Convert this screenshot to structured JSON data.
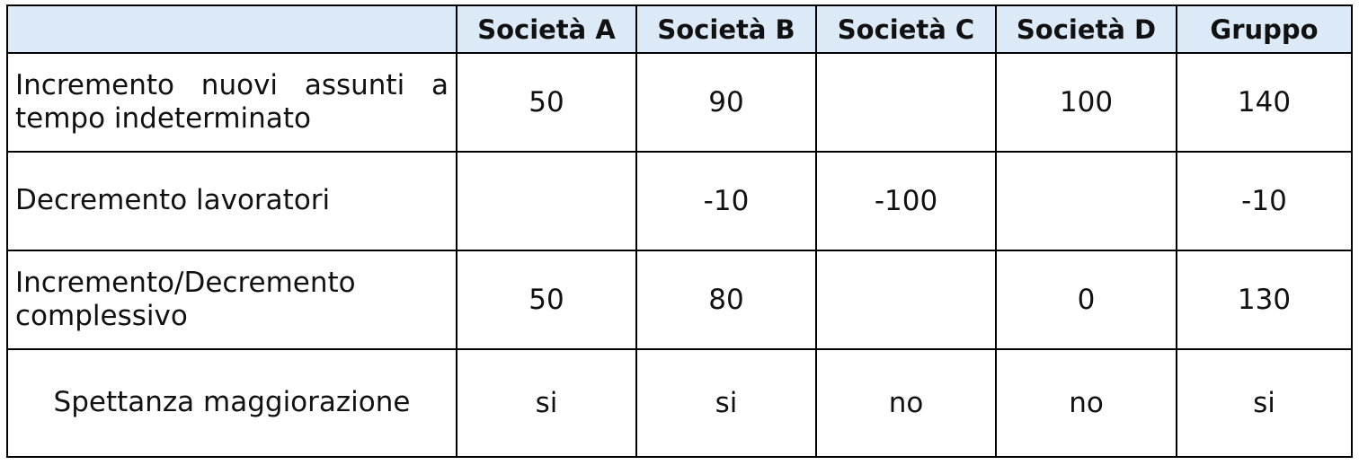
{
  "table": {
    "columns": [
      "Società A",
      "Società B",
      "Società C",
      "Società D",
      "Gruppo"
    ],
    "rows": [
      {
        "label": "Incremento nuovi assunti a tempo indeterminato",
        "cells": [
          50,
          90,
          null,
          100,
          140
        ]
      },
      {
        "label": "Decremento lavoratori",
        "cells": [
          null,
          -10,
          -100,
          null,
          -10
        ]
      },
      {
        "label": "Incremento/Decremento complessivo",
        "cells": [
          50,
          80,
          null,
          0,
          130
        ]
      },
      {
        "label": "Spettanza maggiorazione",
        "cells": [
          "si",
          "si",
          "no",
          "no",
          "si"
        ]
      }
    ]
  }
}
